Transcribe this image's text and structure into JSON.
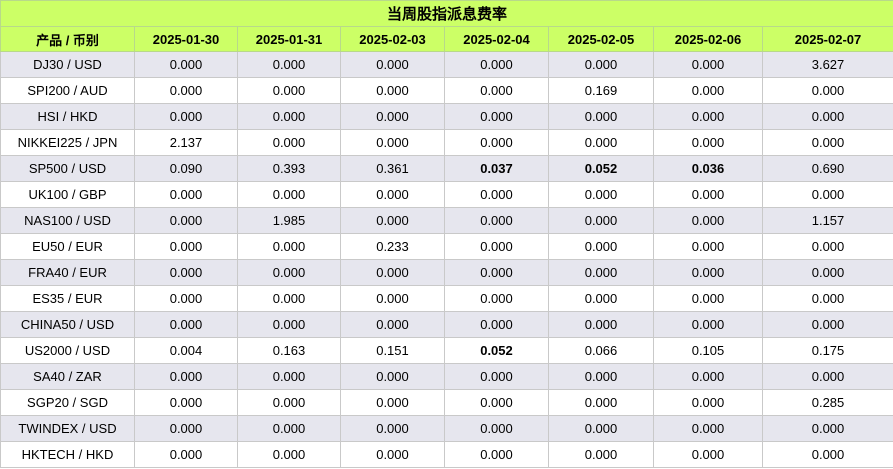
{
  "title": "当周股指派息费率",
  "header_first": "产品  /  币别",
  "dates": [
    "2025-01-30",
    "2025-01-31",
    "2025-02-03",
    "2025-02-04",
    "2025-02-05",
    "2025-02-06",
    "2025-02-07"
  ],
  "rows": [
    {
      "product": "DJ30 / USD",
      "values": [
        "0.000",
        "0.000",
        "0.000",
        "0.000",
        "0.000",
        "0.000",
        "3.627"
      ]
    },
    {
      "product": "SPI200 / AUD",
      "values": [
        "0.000",
        "0.000",
        "0.000",
        "0.000",
        "0.169",
        "0.000",
        "0.000"
      ]
    },
    {
      "product": "HSI / HKD",
      "values": [
        "0.000",
        "0.000",
        "0.000",
        "0.000",
        "0.000",
        "0.000",
        "0.000"
      ]
    },
    {
      "product": "NIKKEI225 / JPN",
      "values": [
        "2.137",
        "0.000",
        "0.000",
        "0.000",
        "0.000",
        "0.000",
        "0.000"
      ]
    },
    {
      "product": "SP500 / USD",
      "values": [
        "0.090",
        "0.393",
        "0.361",
        "0.037",
        "0.052",
        "0.036",
        "0.690"
      ],
      "bold": [
        3,
        4,
        5
      ]
    },
    {
      "product": "UK100 / GBP",
      "values": [
        "0.000",
        "0.000",
        "0.000",
        "0.000",
        "0.000",
        "0.000",
        "0.000"
      ]
    },
    {
      "product": "NAS100 / USD",
      "values": [
        "0.000",
        "1.985",
        "0.000",
        "0.000",
        "0.000",
        "0.000",
        "1.157"
      ]
    },
    {
      "product": "EU50 / EUR",
      "values": [
        "0.000",
        "0.000",
        "0.233",
        "0.000",
        "0.000",
        "0.000",
        "0.000"
      ]
    },
    {
      "product": "FRA40 / EUR",
      "values": [
        "0.000",
        "0.000",
        "0.000",
        "0.000",
        "0.000",
        "0.000",
        "0.000"
      ]
    },
    {
      "product": "ES35 / EUR",
      "values": [
        "0.000",
        "0.000",
        "0.000",
        "0.000",
        "0.000",
        "0.000",
        "0.000"
      ]
    },
    {
      "product": "CHINA50 / USD",
      "values": [
        "0.000",
        "0.000",
        "0.000",
        "0.000",
        "0.000",
        "0.000",
        "0.000"
      ]
    },
    {
      "product": "US2000 / USD",
      "values": [
        "0.004",
        "0.163",
        "0.151",
        "0.052",
        "0.066",
        "0.105",
        "0.175"
      ],
      "bold": [
        3
      ]
    },
    {
      "product": "SA40 / ZAR",
      "values": [
        "0.000",
        "0.000",
        "0.000",
        "0.000",
        "0.000",
        "0.000",
        "0.000"
      ]
    },
    {
      "product": "SGP20 / SGD",
      "values": [
        "0.000",
        "0.000",
        "0.000",
        "0.000",
        "0.000",
        "0.000",
        "0.285"
      ]
    },
    {
      "product": "TWINDEX / USD",
      "values": [
        "0.000",
        "0.000",
        "0.000",
        "0.000",
        "0.000",
        "0.000",
        "0.000"
      ]
    },
    {
      "product": "HKTECH / HKD",
      "values": [
        "0.000",
        "0.000",
        "0.000",
        "0.000",
        "0.000",
        "0.000",
        "0.000"
      ]
    }
  ]
}
